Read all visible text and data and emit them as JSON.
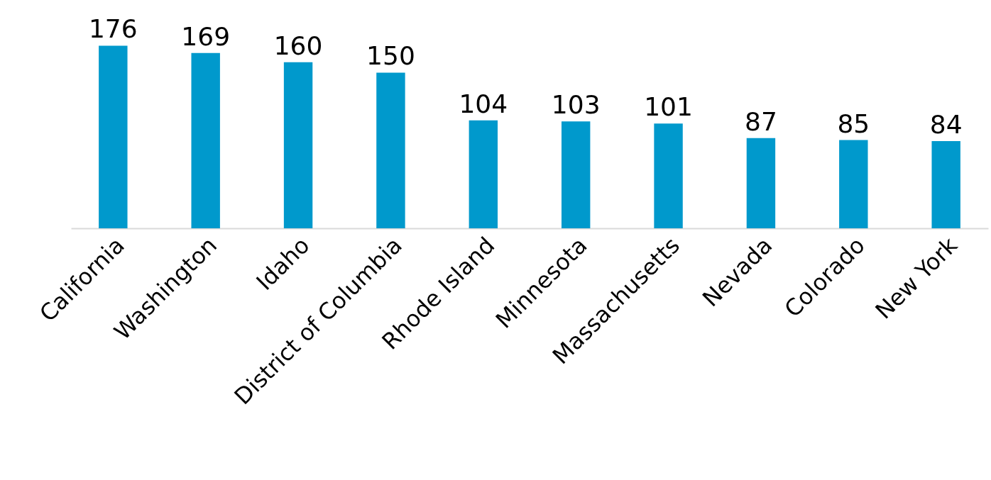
{
  "chart_data": {
    "type": "bar",
    "categories": [
      "California",
      "Washington",
      "Idaho",
      "District of Columbia",
      "Rhode Island",
      "Minnesota",
      "Massachusetts",
      "Nevada",
      "Colorado",
      "New York"
    ],
    "values": [
      176,
      169,
      160,
      150,
      104,
      103,
      101,
      87,
      85,
      84
    ],
    "color": "#0099cc",
    "data_labels": true
  }
}
